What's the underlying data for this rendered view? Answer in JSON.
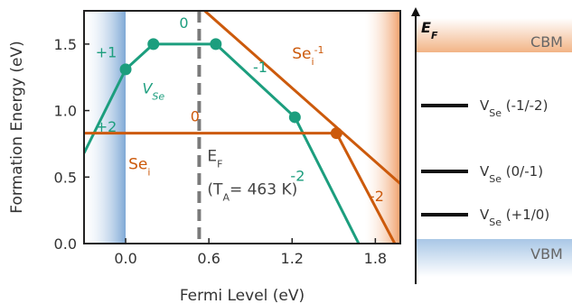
{
  "chart_data": {
    "type": "line",
    "xlabel": "Fermi Level (eV)",
    "ylabel": "Formation Energy (eV)",
    "xlim": [
      -0.3,
      1.98
    ],
    "ylim": [
      0.0,
      1.75
    ],
    "xticks": [
      "0.0",
      "0.6",
      "1.2",
      "1.8"
    ],
    "yticks": [
      "0.0",
      "0.5",
      "1.0",
      "1.5"
    ],
    "xtick_values": [
      0.0,
      0.6,
      1.2,
      1.8
    ],
    "ytick_values": [
      0.0,
      0.5,
      1.0,
      1.5
    ],
    "vbm_shade_x": [
      -0.3,
      0.0
    ],
    "cbm_shade_x": [
      1.72,
      1.98
    ],
    "series": [
      {
        "name": "V",
        "name_sub": "Se",
        "color": "#1c9e7e",
        "points": [
          [
            -0.3,
            0.68
          ],
          [
            0.0,
            1.31
          ],
          [
            0.2,
            1.5
          ],
          [
            0.65,
            1.5
          ],
          [
            1.22,
            0.95
          ],
          [
            1.68,
            0.0
          ]
        ],
        "transitions": [
          [
            0.0,
            1.31
          ],
          [
            0.2,
            1.5
          ],
          [
            0.65,
            1.5
          ],
          [
            1.22,
            0.95
          ]
        ],
        "charges": [
          {
            "text": "+1",
            "x": -0.14,
            "y": 1.4
          },
          {
            "text": "+2",
            "x": -0.14,
            "y": 0.84
          },
          {
            "text": "0",
            "x": 0.42,
            "y": 1.62
          },
          {
            "text": "-1",
            "x": 0.97,
            "y": 1.29
          },
          {
            "text": "-2",
            "x": 1.24,
            "y": 0.47
          }
        ]
      },
      {
        "name": "Se",
        "name_sub": "i",
        "color": "#cc5a0c",
        "points": [
          [
            -0.3,
            0.83
          ],
          [
            1.52,
            0.83
          ],
          [
            1.94,
            0.0
          ]
        ],
        "transitions": [
          [
            1.52,
            0.83
          ]
        ],
        "extra_line": [
          [
            0.57,
            1.75
          ],
          [
            1.98,
            0.45
          ]
        ],
        "charges": [
          {
            "text": "0",
            "x": 0.5,
            "y": 0.92
          },
          {
            "text": "-2",
            "x": 1.81,
            "y": 0.32
          }
        ]
      }
    ],
    "labels": {
      "v_se_main": "V",
      "v_se_sub": "Se",
      "se_i_main": "Se",
      "se_i_sub": "i",
      "se_i_upper_main": "Se",
      "se_i_upper_sub": "i",
      "se_i_upper_sup": "-1"
    },
    "fermi_marker": {
      "x": 0.53,
      "main": "E",
      "sub": "F",
      "annotation": "(T",
      "annotation_sub": "A",
      "annotation_tail": "= 463 K)"
    }
  },
  "band_diagram": {
    "axis_main": "E",
    "axis_sub": "F",
    "cbm_label": "CBM",
    "vbm_label": "VBM",
    "levels": [
      {
        "main": "V",
        "sub": "Se",
        "charge": "(-1/-2)"
      },
      {
        "main": "V",
        "sub": "Se",
        "charge": "(0/-1)"
      },
      {
        "main": "V",
        "sub": "Se",
        "charge": "(+1/0)"
      }
    ]
  }
}
